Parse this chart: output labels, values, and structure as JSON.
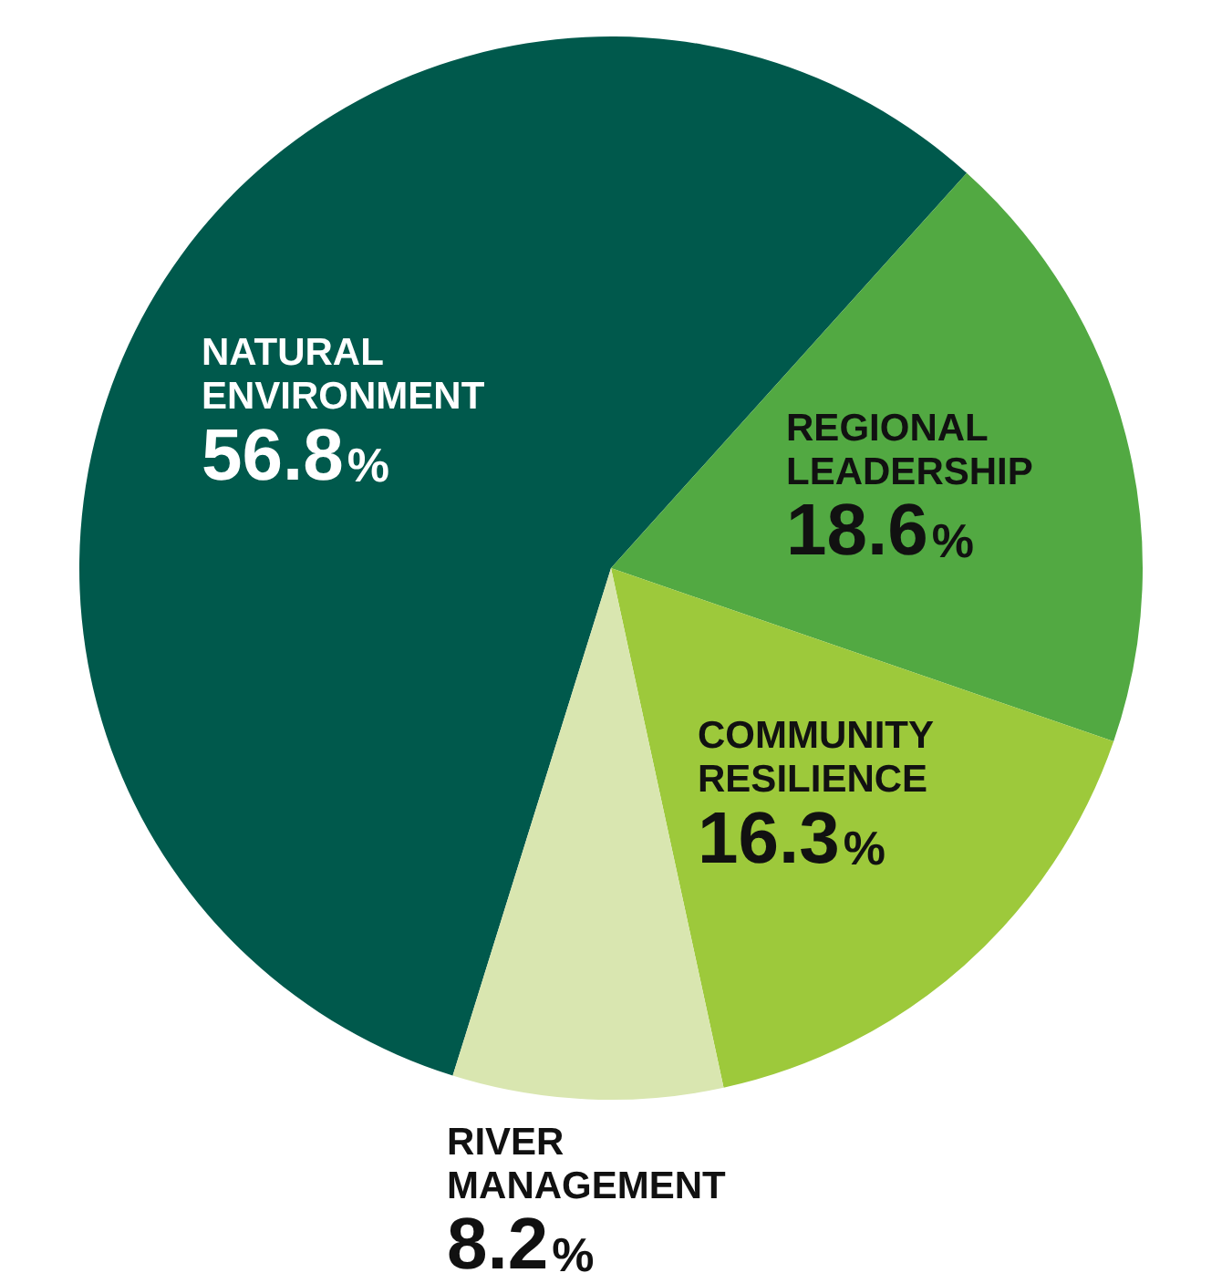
{
  "chart_data": {
    "type": "pie",
    "categories": [
      "NATURAL ENVIRONMENT",
      "REGIONAL LEADERSHIP",
      "COMMUNITY RESILIENCE",
      "RIVER MANAGEMENT"
    ],
    "values": [
      56.8,
      18.6,
      16.3,
      8.2
    ],
    "colors": [
      "#00594c",
      "#52a942",
      "#9dc93b",
      "#d9e6b0"
    ],
    "value_labels": [
      "56.8%",
      "18.6%",
      "16.3%",
      "8.2%"
    ],
    "legend": false
  }
}
